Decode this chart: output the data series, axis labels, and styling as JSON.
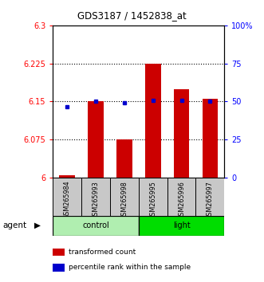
{
  "title": "GDS3187 / 1452838_at",
  "samples": [
    "GSM265984",
    "GSM265993",
    "GSM265998",
    "GSM265995",
    "GSM265996",
    "GSM265997"
  ],
  "bar_values": [
    6.005,
    6.15,
    6.075,
    6.225,
    6.175,
    6.155
  ],
  "bar_base": 6.0,
  "dot_values": [
    6.14,
    6.15,
    6.148,
    6.152,
    6.152,
    6.15
  ],
  "ylim_left": [
    6.0,
    6.3
  ],
  "ylim_right": [
    0,
    100
  ],
  "yticks_left": [
    6.0,
    6.075,
    6.15,
    6.225,
    6.3
  ],
  "ytick_labels_left": [
    "6",
    "6.075",
    "6.15",
    "6.225",
    "6.3"
  ],
  "yticks_right": [
    0,
    25,
    50,
    75,
    100
  ],
  "ytick_labels_right": [
    "0",
    "25",
    "50",
    "75",
    "100%"
  ],
  "bar_color": "#CC0000",
  "dot_color": "#0000CC",
  "bar_width": 0.55,
  "grid_yticks": [
    6.075,
    6.15,
    6.225
  ],
  "control_color": "#B0EEB0",
  "light_color": "#00DD00",
  "legend_items": [
    {
      "color": "#CC0000",
      "label": "transformed count"
    },
    {
      "color": "#0000CC",
      "label": "percentile rank within the sample"
    }
  ],
  "background_color": "#ffffff"
}
